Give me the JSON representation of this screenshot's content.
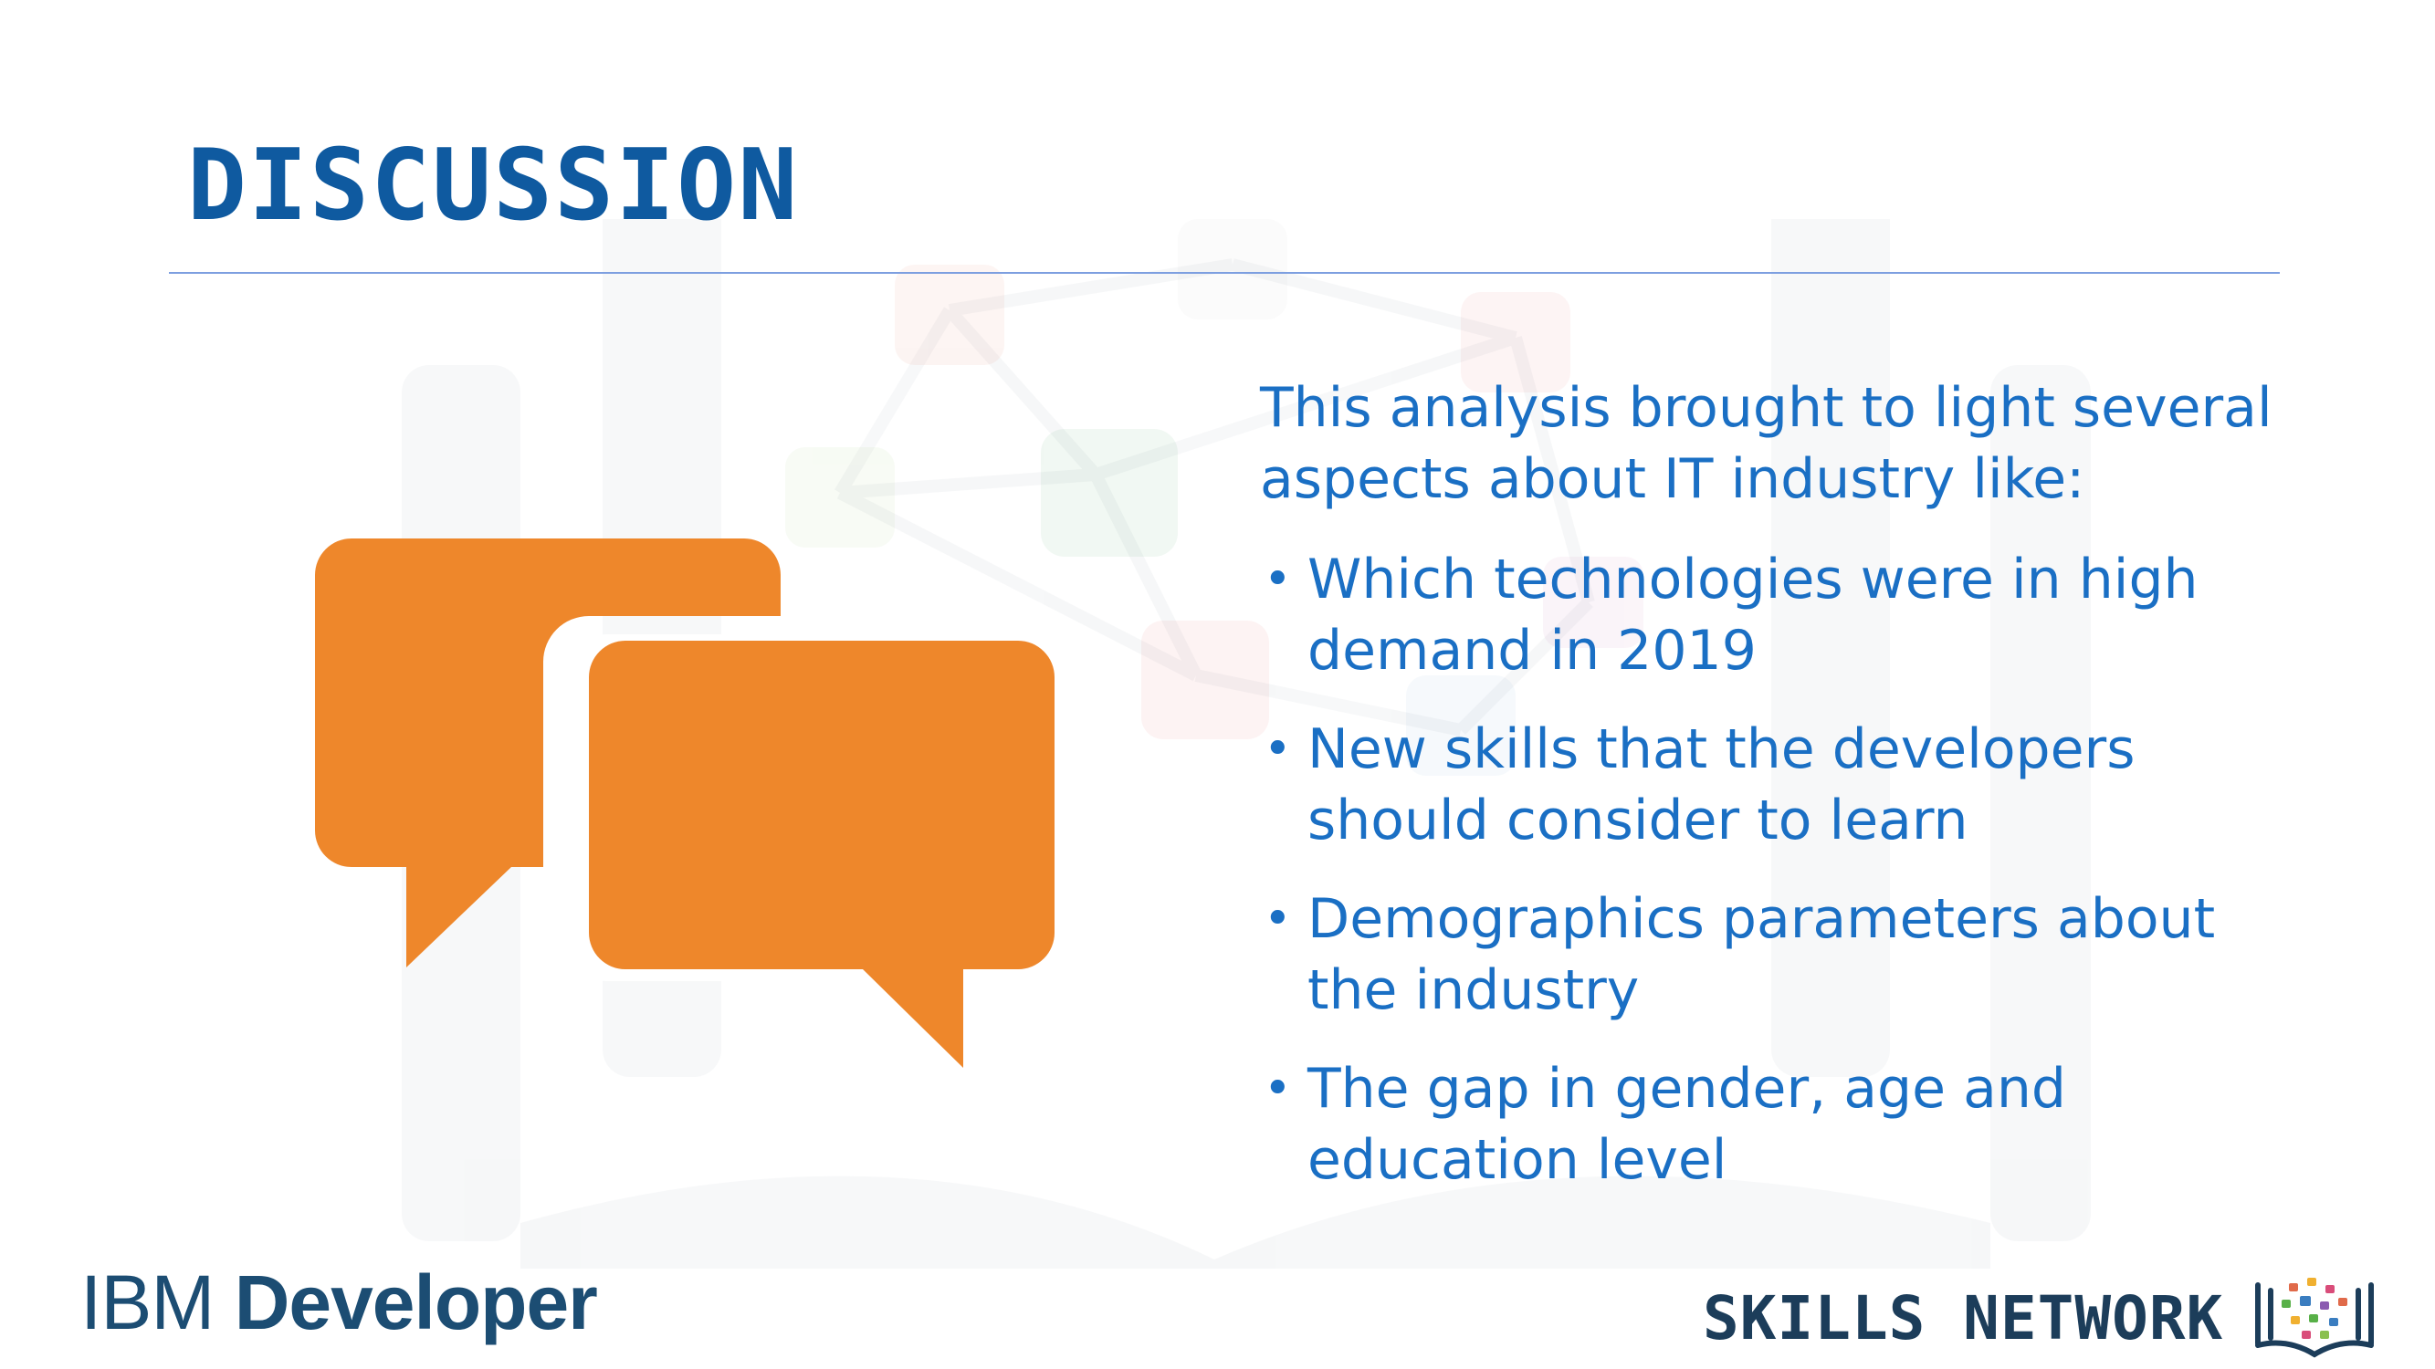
{
  "slide": {
    "title": "DISCUSSION",
    "intro": "This analysis brought to light several aspects about IT industry like:",
    "bullets": [
      "Which technologies were in high demand in 2019",
      "New skills that the developers should consider to learn",
      "Demographics parameters about the industry",
      "The gap in gender, age and education level"
    ],
    "bullet_glyph": "•"
  },
  "footer": {
    "ibm_prefix": "IBM",
    "ibm_suffix": "Developer",
    "skills_network": "SKILLS NETWORK"
  },
  "icons": {
    "main": "speech-bubbles-icon",
    "book": "open-book-network-icon",
    "background": "network-book-watermark"
  },
  "colors": {
    "title": "#0f5aa0",
    "body_text": "#1a6fc4",
    "rule": "#7d9fe0",
    "bubble": "#ee872b",
    "ibm_logo": "#1c4d73",
    "skills_logo": "#1c3d5a"
  }
}
